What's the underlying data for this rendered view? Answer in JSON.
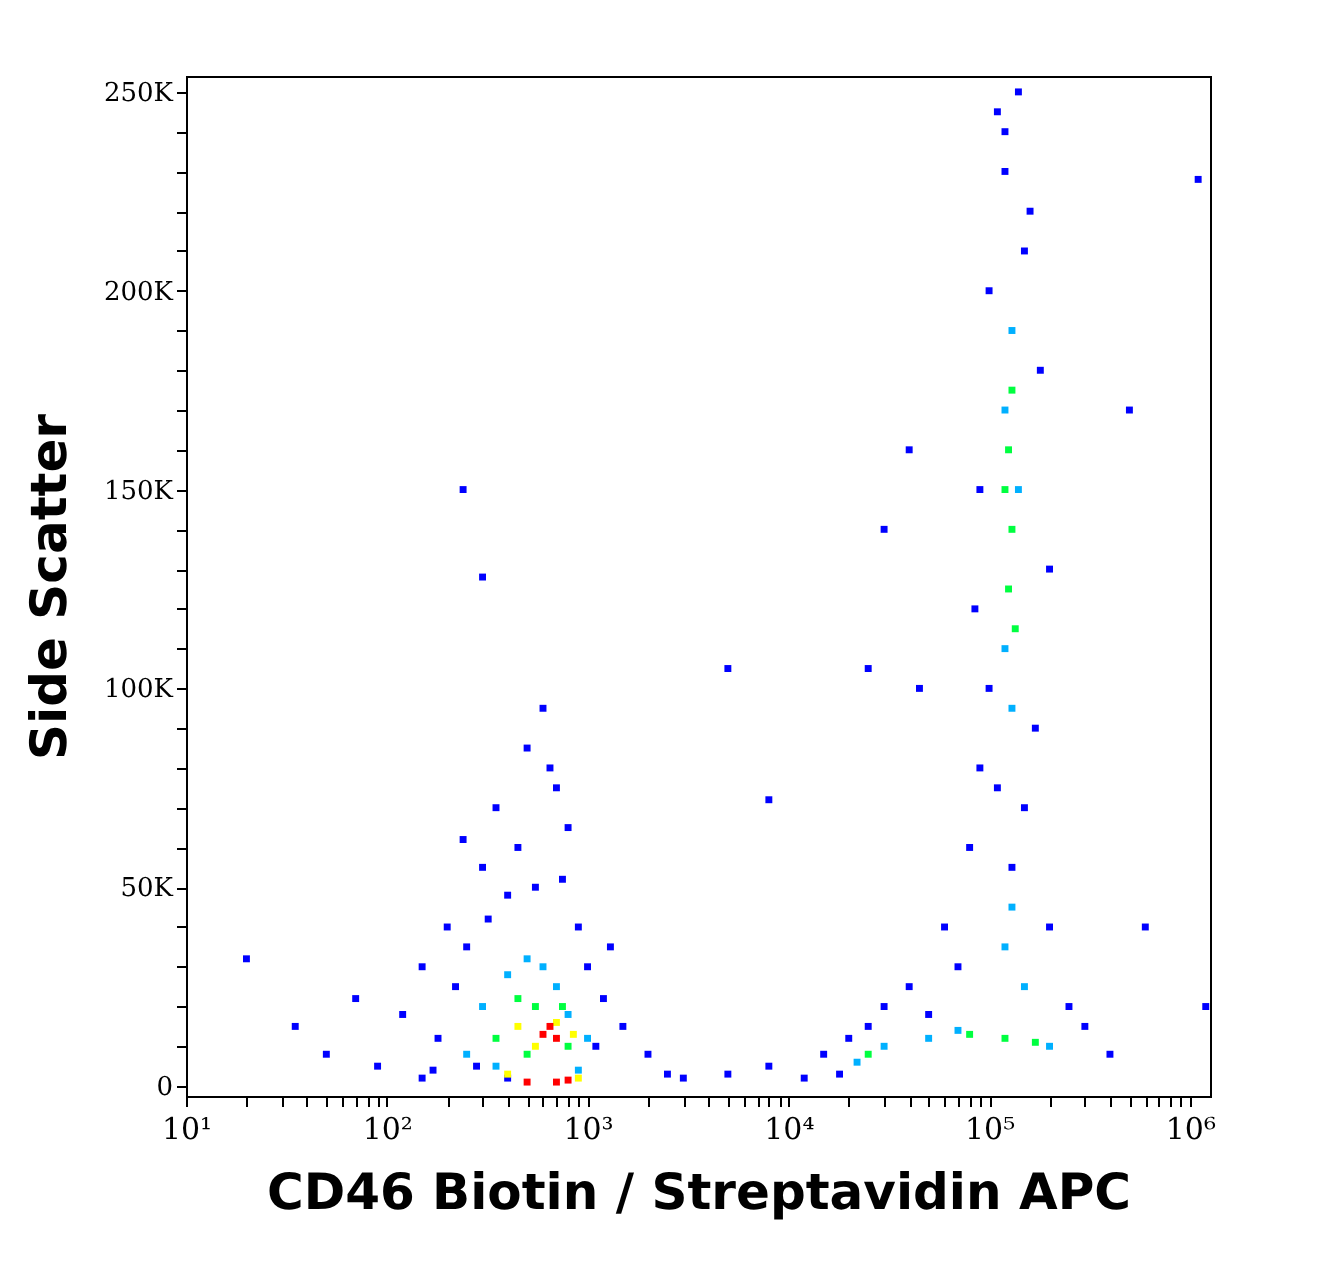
{
  "chart_data": {
    "type": "scatter",
    "xlabel": "CD46 Biotin / Streptavidin APC",
    "ylabel": "Side Scatter",
    "log": "x",
    "grid": false,
    "marker": "square",
    "xlim": [
      10,
      1260000
    ],
    "ylim": [
      -2500,
      254000
    ],
    "xticks": [
      {
        "value": 10,
        "label": "10¹"
      },
      {
        "value": 20,
        "label": null
      },
      {
        "value": 30,
        "label": null
      },
      {
        "value": 40,
        "label": null
      },
      {
        "value": 50,
        "label": null
      },
      {
        "value": 60,
        "label": null
      },
      {
        "value": 70,
        "label": null
      },
      {
        "value": 80,
        "label": null
      },
      {
        "value": 90,
        "label": null
      },
      {
        "value": 100,
        "label": "10²"
      },
      {
        "value": 200,
        "label": null
      },
      {
        "value": 300,
        "label": null
      },
      {
        "value": 400,
        "label": null
      },
      {
        "value": 500,
        "label": null
      },
      {
        "value": 600,
        "label": null
      },
      {
        "value": 700,
        "label": null
      },
      {
        "value": 800,
        "label": null
      },
      {
        "value": 900,
        "label": null
      },
      {
        "value": 1000,
        "label": "10³"
      },
      {
        "value": 2000,
        "label": null
      },
      {
        "value": 3000,
        "label": null
      },
      {
        "value": 4000,
        "label": null
      },
      {
        "value": 5000,
        "label": null
      },
      {
        "value": 6000,
        "label": null
      },
      {
        "value": 7000,
        "label": null
      },
      {
        "value": 8000,
        "label": null
      },
      {
        "value": 9000,
        "label": null
      },
      {
        "value": 10000,
        "label": "10⁴"
      },
      {
        "value": 20000,
        "label": null
      },
      {
        "value": 30000,
        "label": null
      },
      {
        "value": 40000,
        "label": null
      },
      {
        "value": 50000,
        "label": null
      },
      {
        "value": 60000,
        "label": null
      },
      {
        "value": 70000,
        "label": null
      },
      {
        "value": 80000,
        "label": null
      },
      {
        "value": 90000,
        "label": null
      },
      {
        "value": 100000,
        "label": "10⁵"
      },
      {
        "value": 200000,
        "label": null
      },
      {
        "value": 300000,
        "label": null
      },
      {
        "value": 400000,
        "label": null
      },
      {
        "value": 500000,
        "label": null
      },
      {
        "value": 600000,
        "label": null
      },
      {
        "value": 700000,
        "label": null
      },
      {
        "value": 800000,
        "label": null
      },
      {
        "value": 900000,
        "label": null
      },
      {
        "value": 1000000,
        "label": "10⁶"
      }
    ],
    "yticks": [
      {
        "value": 0,
        "label": "0"
      },
      {
        "value": 10000,
        "label": null
      },
      {
        "value": 20000,
        "label": null
      },
      {
        "value": 30000,
        "label": null
      },
      {
        "value": 40000,
        "label": null
      },
      {
        "value": 50000,
        "label": "50K"
      },
      {
        "value": 60000,
        "label": null
      },
      {
        "value": 70000,
        "label": null
      },
      {
        "value": 80000,
        "label": null
      },
      {
        "value": 90000,
        "label": null
      },
      {
        "value": 100000,
        "label": "100K"
      },
      {
        "value": 110000,
        "label": null
      },
      {
        "value": 120000,
        "label": null
      },
      {
        "value": 130000,
        "label": null
      },
      {
        "value": 140000,
        "label": null
      },
      {
        "value": 150000,
        "label": "150K"
      },
      {
        "value": 160000,
        "label": null
      },
      {
        "value": 170000,
        "label": null
      },
      {
        "value": 180000,
        "label": null
      },
      {
        "value": 190000,
        "label": null
      },
      {
        "value": 200000,
        "label": "200K"
      },
      {
        "value": 210000,
        "label": null
      },
      {
        "value": 220000,
        "label": null
      },
      {
        "value": 230000,
        "label": null
      },
      {
        "value": 240000,
        "label": null
      },
      {
        "value": 250000,
        "label": "250K"
      }
    ],
    "series": [
      {
        "color": "#0000ff",
        "x": [
          20,
          35,
          50,
          70,
          90,
          120,
          150,
          180,
          200,
          250,
          300,
          350,
          400,
          450,
          500,
          600,
          700,
          800,
          900,
          1000,
          1200,
          1500,
          2000,
          2500,
          150,
          220,
          280,
          320,
          550,
          750,
          1100,
          1300,
          400,
          650,
          3000,
          5000,
          170,
          240,
          300,
          240,
          8000,
          12000,
          15000,
          18000,
          20000,
          25000,
          30000,
          40000,
          50000,
          60000,
          70000,
          80000,
          90000,
          100000,
          100000,
          110000,
          120000,
          140000,
          160000,
          180000,
          170000,
          150000,
          130000,
          200000,
          250000,
          300000,
          400000,
          90000,
          85000,
          200000,
          110000,
          120000,
          150000,
          30000,
          40000,
          25000,
          45000,
          1100000,
          1200000,
          600000,
          500000,
          5000,
          8000
        ],
        "values": [
          32000,
          15000,
          8000,
          22000,
          5000,
          18000,
          30000,
          12000,
          40000,
          35000,
          55000,
          70000,
          48000,
          60000,
          85000,
          95000,
          75000,
          65000,
          40000,
          30000,
          22000,
          15000,
          8000,
          3000,
          2000,
          25000,
          5000,
          42000,
          50000,
          52000,
          10000,
          35000,
          2000,
          80000,
          2000,
          3000,
          4000,
          150000,
          128000,
          62000,
          5000,
          2000,
          8000,
          3000,
          12000,
          15000,
          20000,
          25000,
          18000,
          40000,
          30000,
          60000,
          80000,
          100000,
          200000,
          245000,
          230000,
          250000,
          220000,
          180000,
          90000,
          70000,
          55000,
          40000,
          20000,
          15000,
          8000,
          150000,
          120000,
          130000,
          75000,
          240000,
          210000,
          140000,
          160000,
          105000,
          100000,
          228000,
          20000,
          40000,
          170000,
          105000,
          72000
        ]
      },
      {
        "color": "#00b0ff",
        "x": [
          300,
          400,
          500,
          600,
          700,
          800,
          1000,
          250,
          350,
          900,
          130000,
          120000,
          140000,
          120000,
          130000,
          130000,
          120000,
          30000,
          50000,
          70000,
          200000,
          22000,
          150000
        ],
        "values": [
          20000,
          28000,
          32000,
          30000,
          25000,
          18000,
          12000,
          8000,
          5000,
          4000,
          190000,
          170000,
          150000,
          110000,
          95000,
          45000,
          35000,
          10000,
          12000,
          14000,
          10000,
          6000,
          25000
        ]
      },
      {
        "color": "#00ff40",
        "x": [
          450,
          550,
          750,
          500,
          800,
          350,
          125000,
          130000,
          125000,
          135000,
          120000,
          130000,
          80000,
          120000,
          170000,
          25000
        ],
        "values": [
          22000,
          20000,
          20000,
          8000,
          10000,
          12000,
          160000,
          140000,
          125000,
          115000,
          150000,
          175000,
          13000,
          12000,
          11000,
          8000
        ]
      },
      {
        "color": "#ffff00",
        "x": [
          450,
          700,
          550,
          850,
          400,
          900
        ],
        "values": [
          15000,
          16000,
          10000,
          13000,
          3000,
          2000
        ]
      },
      {
        "color": "#ff0000",
        "x": [
          600,
          700,
          650,
          500,
          700,
          800
        ],
        "values": [
          13000,
          12000,
          15000,
          1000,
          1000,
          1500
        ]
      }
    ]
  }
}
